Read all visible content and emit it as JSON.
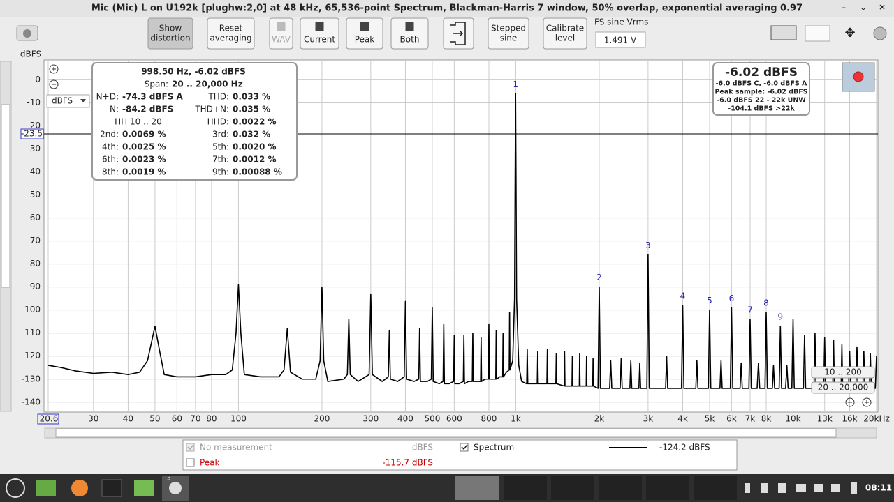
{
  "window": {
    "title": "Mic (Mic) L on U192k [plughw:2,0] at 48 kHz, 65,536-point Spectrum, Blackman-Harris 7 window, 50% overlap, exponential averaging 0.97"
  },
  "toolbar": {
    "buttons": [
      {
        "lines": [
          "Show",
          "distortion"
        ]
      },
      {
        "lines": [
          "Reset",
          "averaging"
        ]
      },
      {
        "lines": [
          "WAV"
        ]
      },
      {
        "lines": [
          "Current"
        ]
      },
      {
        "lines": [
          "Peak"
        ]
      },
      {
        "lines": [
          "Both"
        ]
      },
      {
        "lines": [
          "Stepped",
          "sine"
        ]
      },
      {
        "lines": [
          "Calibrate",
          "level"
        ]
      }
    ],
    "fs_label": "FS sine Vrms",
    "fs_value": "1.491 V"
  },
  "info": {
    "header": "998.50 Hz, -6.02 dBFS",
    "span_label": "Span:",
    "span_value": "20 .. 20,000 Hz",
    "rows_a": [
      [
        "N+D:",
        "-74.3 dBFS A",
        "THD:",
        "0.033 %"
      ],
      [
        "N:",
        "-84.2 dBFS",
        "THD+N:",
        "0.035 %"
      ]
    ],
    "hh": {
      "range": "HH 10 .. 20",
      "label": "HHD:",
      "value": "0.0022 %"
    },
    "rows_b": [
      [
        "2nd:",
        "0.0069 %",
        "3rd:",
        "0.032 %"
      ],
      [
        "4th:",
        "0.0025 %",
        "5th:",
        "0.0020 %"
      ],
      [
        "6th:",
        "0.0023 %",
        "7th:",
        "0.0012 %"
      ],
      [
        "8th:",
        "0.0019 %",
        "9th:",
        "0.00088 %"
      ]
    ]
  },
  "level": {
    "main": "-6.02 dBFS",
    "lines": [
      "-6.0 dBFS C, -6.0 dBFS A",
      "Peak sample: -6.02 dBFS",
      "-6.0 dBFS 22 - 22k UNW",
      "-104.1 dBFS >22k"
    ]
  },
  "chart_data": {
    "type": "line",
    "y_label": "dBFS",
    "y_unit": "dBFS",
    "xscale": "log",
    "grid": true,
    "xlim": [
      20.6,
      20000
    ],
    "ylim": [
      -144,
      8
    ],
    "xticks": [
      20.6,
      30,
      40,
      50,
      60,
      70,
      80,
      100,
      200,
      300,
      400,
      500,
      600,
      800,
      {
        "value": 1000,
        "label": "1k"
      },
      {
        "value": 2000,
        "label": "2k"
      },
      {
        "value": 3000,
        "label": "3k"
      },
      {
        "value": 4000,
        "label": "4k"
      },
      {
        "value": 5000,
        "label": "5k"
      },
      {
        "value": 6000,
        "label": "6k"
      },
      {
        "value": 7000,
        "label": "7k"
      },
      {
        "value": 8000,
        "label": "8k"
      },
      {
        "value": 10000,
        "label": "10k"
      },
      {
        "value": 13000,
        "label": "13k"
      },
      {
        "value": 16000,
        "label": "16k"
      },
      {
        "value": 20000,
        "label": "20kHz"
      }
    ],
    "yticks": [
      0,
      -10,
      -20,
      -30,
      -40,
      -50,
      -60,
      -70,
      -80,
      -90,
      -100,
      -110,
      -120,
      -130,
      -140
    ],
    "cursor_y": -23.5,
    "annotations": [
      {
        "text": "1",
        "x": 998.5,
        "y": -6.02
      },
      {
        "text": "2",
        "x": 2000,
        "y": -90
      },
      {
        "text": "3",
        "x": 3000,
        "y": -76
      },
      {
        "text": "4",
        "x": 4000,
        "y": -98
      },
      {
        "text": "5",
        "x": 5000,
        "y": -100
      },
      {
        "text": "6",
        "x": 6000,
        "y": -99
      },
      {
        "text": "7",
        "x": 7000,
        "y": -104
      },
      {
        "text": "8",
        "x": 8000,
        "y": -101
      },
      {
        "text": "9",
        "x": 9000,
        "y": -107
      }
    ],
    "series": [
      {
        "name": "Spectrum",
        "color": "#000000",
        "x": [
          20.6,
          23,
          26,
          30,
          35,
          40,
          44,
          47,
          50,
          52,
          54,
          60,
          70,
          80,
          90,
          95,
          98,
          100,
          102,
          105,
          120,
          140,
          146,
          150,
          154,
          170,
          190,
          197,
          200,
          203,
          210,
          240,
          247,
          250,
          253,
          270,
          296,
          300,
          304,
          330,
          347,
          350,
          353,
          375,
          396,
          400,
          404,
          430,
          447,
          450,
          453,
          480,
          496,
          500,
          504,
          530,
          547,
          550,
          553,
          575,
          597,
          600,
          603,
          625,
          647,
          650,
          653,
          675,
          697,
          700,
          703,
          725,
          747,
          750,
          753,
          775,
          797,
          800,
          803,
          825,
          847,
          850,
          853,
          875,
          897,
          900,
          903,
          925,
          947,
          950,
          953,
          975,
          990,
          995,
          998.5,
          1002,
          1007,
          1025,
          1050,
          1095,
          1100,
          1105,
          1195,
          1200,
          1205,
          1295,
          1300,
          1305,
          1395,
          1400,
          1405,
          1495,
          1500,
          1505,
          1595,
          1600,
          1605,
          1695,
          1700,
          1705,
          1795,
          1800,
          1805,
          1895,
          1900,
          1905,
          1980,
          2000,
          2020,
          2180,
          2200,
          2220,
          2380,
          2400,
          2420,
          2580,
          2600,
          2620,
          2780,
          2800,
          2820,
          2970,
          3000,
          3030,
          3470,
          3500,
          3530,
          3960,
          4000,
          4040,
          4460,
          4500,
          4540,
          4950,
          5000,
          5050,
          5450,
          5500,
          5550,
          5940,
          6000,
          6060,
          6440,
          6500,
          6560,
          6930,
          7000,
          7070,
          7420,
          7500,
          7580,
          7920,
          8000,
          8080,
          8420,
          8500,
          8580,
          8910,
          9000,
          9090,
          9400,
          9500,
          9600,
          9900,
          10000,
          10100,
          10900,
          11000,
          11100,
          11900,
          12000,
          12100,
          12900,
          13000,
          13100,
          13900,
          14000,
          14100,
          14900,
          15000,
          15100,
          15850,
          16000,
          16150,
          16850,
          17000,
          17150,
          17850,
          18000,
          18150,
          18850,
          19000,
          19150,
          19800,
          20000
        ],
        "values": [
          -124,
          -125,
          -126.5,
          -127.5,
          -127,
          -128,
          -127,
          -122,
          -107,
          -118,
          -128,
          -129,
          -129,
          -128,
          -128,
          -126,
          -110,
          -89,
          -110,
          -128,
          -129,
          -129,
          -126,
          -108,
          -127,
          -130,
          -130,
          -122,
          -90,
          -122,
          -131,
          -130,
          -128,
          -104,
          -128,
          -131,
          -128,
          -93,
          -128,
          -131,
          -129,
          -109,
          -130,
          -131,
          -129,
          -96,
          -130,
          -131,
          -130,
          -108,
          -131,
          -131,
          -130,
          -99,
          -131,
          -132,
          -131,
          -106,
          -132,
          -132,
          -131,
          -111,
          -132,
          -132,
          -131,
          -111,
          -132,
          -131,
          -131,
          -110,
          -131,
          -131,
          -131,
          -112,
          -131,
          -130,
          -130,
          -106,
          -130,
          -130,
          -130,
          -109,
          -130,
          -129,
          -129,
          -110,
          -129,
          -127,
          -126,
          -101,
          -126,
          -122,
          -95,
          -40,
          -6.02,
          -40,
          -95,
          -124,
          -131,
          -132,
          -117,
          -132,
          -132,
          -118,
          -132,
          -132,
          -117,
          -132,
          -132,
          -119,
          -132,
          -133,
          -118,
          -133,
          -133,
          -120,
          -133,
          -133,
          -119,
          -133,
          -133,
          -120,
          -133,
          -133,
          -121,
          -133,
          -134,
          -90,
          -134,
          -134,
          -122,
          -134,
          -134,
          -121,
          -134,
          -134,
          -122,
          -134,
          -134,
          -123,
          -134,
          -134,
          -76,
          -134,
          -134,
          -120,
          -134,
          -134,
          -98,
          -134,
          -134,
          -122,
          -134,
          -134,
          -100,
          -134,
          -134,
          -122,
          -134,
          -134,
          -99,
          -134,
          -134,
          -123,
          -134,
          -134,
          -104,
          -134,
          -134,
          -123,
          -134,
          -134,
          -101,
          -134,
          -134,
          -124,
          -134,
          -134,
          -107,
          -134,
          -134,
          -124,
          -134,
          -134,
          -104,
          -134,
          -134,
          -111,
          -134,
          -134,
          -110,
          -134,
          -134,
          -112,
          -134,
          -134,
          -113,
          -134,
          -134,
          -115,
          -134,
          -134,
          -118,
          -134,
          -134,
          -116,
          -134,
          -134,
          -118,
          -134,
          -134,
          -119,
          -134,
          -134,
          -120
        ]
      }
    ]
  },
  "range_buttons": [
    "10 .. 200",
    "20 .. 20,000"
  ],
  "legend_panel": {
    "rows": [
      [
        "No measurement",
        "dBFS"
      ],
      [
        "Peak",
        "-115.7 dBFS"
      ]
    ],
    "spectrum": "Spectrum",
    "spectrum_value": "-124.2 dBFS"
  },
  "taskbar": {
    "badge": "3",
    "clock": "08:11"
  }
}
